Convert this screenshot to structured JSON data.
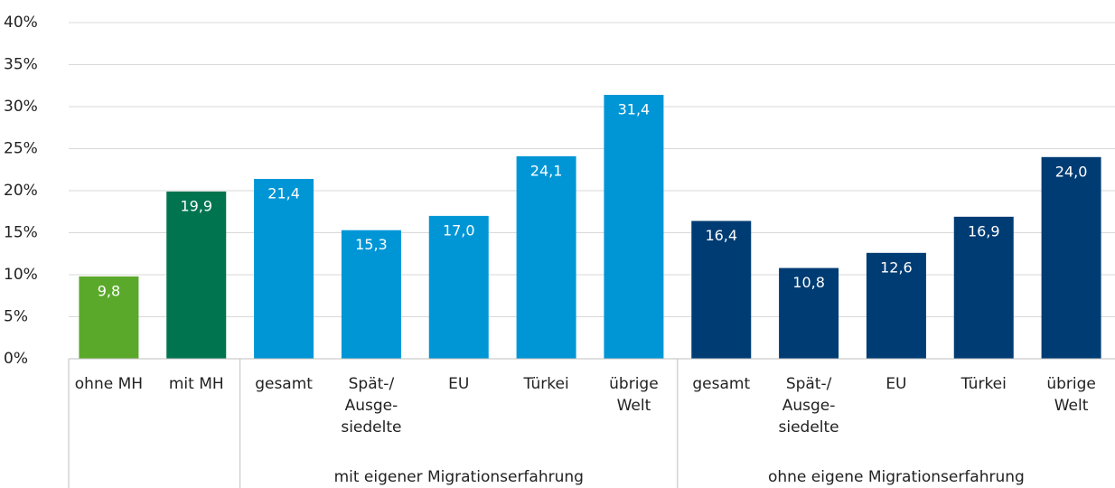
{
  "chart_data": {
    "type": "bar",
    "categories": [
      "ohne MH",
      "mit MH",
      "gesamt",
      "Spät-/\nAusge-\nsiedelte",
      "EU",
      "Türkei",
      "übrige\nWelt",
      "gesamt",
      "Spät-/\nAusge-\nsiedelte",
      "EU",
      "Türkei",
      "übrige\nWelt"
    ],
    "groups": [
      null,
      null,
      "mit eigener Migrationserfahrung",
      "mit eigener Migrationserfahrung",
      "mit eigener Migrationserfahrung",
      "mit eigener Migrationserfahrung",
      "mit eigener Migrationserfahrung",
      "ohne eigene Migrationserfahrung",
      "ohne eigene Migrationserfahrung",
      "ohne eigene Migrationserfahrung",
      "ohne eigene Migrationserfahrung",
      "ohne eigene Migrationserfahrung"
    ],
    "values": [
      9.8,
      19.9,
      21.4,
      15.3,
      17.0,
      24.1,
      31.4,
      16.4,
      10.8,
      12.6,
      16.9,
      24.0
    ],
    "value_labels": [
      "9,8",
      "19,9",
      "21,4",
      "15,3",
      "17,0",
      "24,1",
      "31,4",
      "16,4",
      "10,8",
      "12,6",
      "16,9",
      "24,0"
    ],
    "colors": [
      "#5ba92b",
      "#00744f",
      "#0096d6",
      "#0096d6",
      "#0096d6",
      "#0096d6",
      "#0096d6",
      "#003c74",
      "#003c74",
      "#003c74",
      "#003c74",
      "#003c74"
    ],
    "ylim": [
      0,
      40
    ],
    "yticks": [
      {
        "value": 0,
        "label": "0%"
      },
      {
        "value": 5,
        "label": "5%"
      },
      {
        "value": 10,
        "label": "10%"
      },
      {
        "value": 15,
        "label": "15%"
      },
      {
        "value": 20,
        "label": "20%"
      },
      {
        "value": 25,
        "label": "25%"
      },
      {
        "value": 30,
        "label": "30%"
      },
      {
        "value": 35,
        "label": "35%"
      },
      {
        "value": 40,
        "label": "40%"
      }
    ],
    "grid": true
  }
}
